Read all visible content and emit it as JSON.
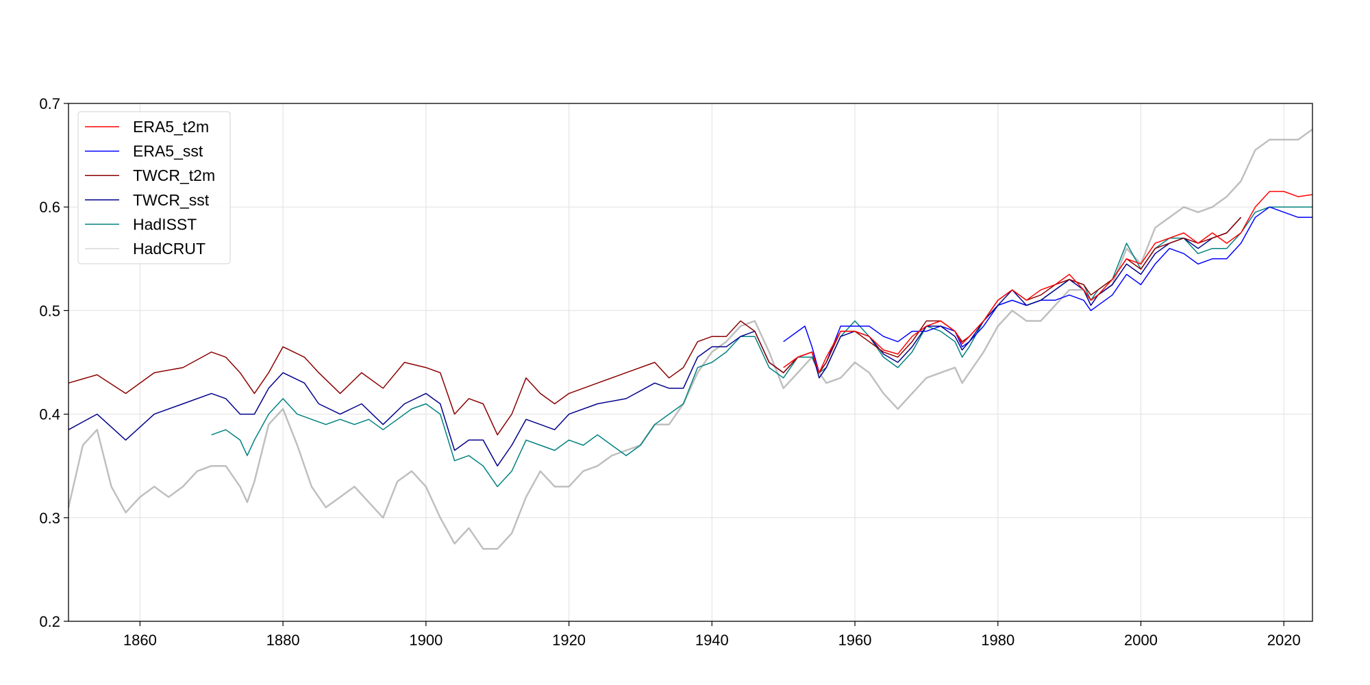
{
  "chart_data": {
    "type": "line",
    "title": "",
    "xlabel": "",
    "ylabel": "",
    "xlim": [
      1850,
      2024
    ],
    "ylim": [
      0.2,
      0.7
    ],
    "xticks": [
      1860,
      1880,
      1900,
      1920,
      1940,
      1960,
      1980,
      2000,
      2020
    ],
    "yticks": [
      0.2,
      0.3,
      0.4,
      0.5,
      0.6,
      0.7
    ],
    "grid": true,
    "legend_position": "top-left",
    "series": [
      {
        "name": "ERA5_t2m",
        "color": "#ff0000",
        "x": [
          1950,
          1952,
          1954,
          1955,
          1956,
          1958,
          1960,
          1962,
          1964,
          1966,
          1968,
          1970,
          1972,
          1974,
          1975,
          1976,
          1978,
          1980,
          1982,
          1984,
          1986,
          1988,
          1990,
          1992,
          1993,
          1994,
          1996,
          1998,
          2000,
          2002,
          2004,
          2006,
          2008,
          2010,
          2012,
          2014,
          2016,
          2018,
          2020,
          2022,
          2024
        ],
        "y": [
          0.445,
          0.455,
          0.46,
          0.44,
          0.455,
          0.48,
          0.48,
          0.475,
          0.462,
          0.458,
          0.475,
          0.485,
          0.49,
          0.48,
          0.468,
          0.475,
          0.49,
          0.51,
          0.52,
          0.51,
          0.52,
          0.525,
          0.535,
          0.52,
          0.51,
          0.515,
          0.53,
          0.55,
          0.545,
          0.565,
          0.57,
          0.575,
          0.565,
          0.575,
          0.565,
          0.575,
          0.6,
          0.615,
          0.615,
          0.61,
          0.612
        ]
      },
      {
        "name": "ERA5_sst",
        "color": "#0000ff",
        "x": [
          1950,
          1952,
          1953,
          1954,
          1955,
          1956,
          1958,
          1960,
          1962,
          1964,
          1966,
          1968,
          1970,
          1972,
          1974,
          1975,
          1976,
          1978,
          1980,
          1982,
          1984,
          1986,
          1988,
          1990,
          1992,
          1993,
          1994,
          1996,
          1998,
          2000,
          2002,
          2004,
          2006,
          2008,
          2010,
          2012,
          2014,
          2016,
          2018,
          2020,
          2022,
          2024
        ],
        "y": [
          0.47,
          0.48,
          0.485,
          0.465,
          0.44,
          0.45,
          0.485,
          0.485,
          0.485,
          0.475,
          0.47,
          0.48,
          0.48,
          0.485,
          0.48,
          0.465,
          0.47,
          0.485,
          0.505,
          0.51,
          0.505,
          0.51,
          0.51,
          0.515,
          0.51,
          0.5,
          0.505,
          0.515,
          0.535,
          0.525,
          0.545,
          0.56,
          0.555,
          0.545,
          0.55,
          0.55,
          0.565,
          0.59,
          0.6,
          0.595,
          0.59,
          0.59
        ]
      },
      {
        "name": "TWCR_t2m",
        "color": "#8b0000",
        "x": [
          1850,
          1854,
          1858,
          1862,
          1866,
          1870,
          1872,
          1874,
          1876,
          1878,
          1880,
          1883,
          1885,
          1888,
          1891,
          1894,
          1897,
          1900,
          1902,
          1904,
          1906,
          1908,
          1910,
          1912,
          1914,
          1916,
          1918,
          1920,
          1924,
          1928,
          1932,
          1934,
          1936,
          1938,
          1940,
          1942,
          1944,
          1946,
          1948,
          1950,
          1952,
          1954,
          1955,
          1956,
          1958,
          1960,
          1962,
          1964,
          1966,
          1968,
          1970,
          1972,
          1974,
          1975,
          1976,
          1978,
          1980,
          1982,
          1984,
          1986,
          1988,
          1990,
          1992,
          1993,
          1994,
          1996,
          1998,
          2000,
          2002,
          2004,
          2006,
          2008,
          2010,
          2012,
          2014
        ],
        "y": [
          0.43,
          0.438,
          0.42,
          0.44,
          0.445,
          0.46,
          0.455,
          0.44,
          0.42,
          0.44,
          0.465,
          0.455,
          0.44,
          0.42,
          0.44,
          0.425,
          0.45,
          0.445,
          0.44,
          0.4,
          0.415,
          0.41,
          0.38,
          0.4,
          0.435,
          0.42,
          0.41,
          0.42,
          0.43,
          0.44,
          0.45,
          0.435,
          0.445,
          0.47,
          0.475,
          0.475,
          0.49,
          0.48,
          0.45,
          0.44,
          0.455,
          0.46,
          0.44,
          0.45,
          0.48,
          0.48,
          0.47,
          0.46,
          0.455,
          0.47,
          0.49,
          0.49,
          0.48,
          0.47,
          0.475,
          0.49,
          0.51,
          0.52,
          0.51,
          0.515,
          0.525,
          0.53,
          0.525,
          0.515,
          0.52,
          0.53,
          0.55,
          0.54,
          0.56,
          0.565,
          0.57,
          0.565,
          0.57,
          0.575,
          0.59
        ]
      },
      {
        "name": "TWCR_sst",
        "color": "#00008b",
        "x": [
          1850,
          1854,
          1858,
          1862,
          1866,
          1870,
          1872,
          1874,
          1876,
          1878,
          1880,
          1883,
          1885,
          1888,
          1891,
          1894,
          1897,
          1900,
          1902,
          1904,
          1906,
          1908,
          1910,
          1912,
          1914,
          1916,
          1918,
          1920,
          1924,
          1928,
          1932,
          1934,
          1936,
          1938,
          1940,
          1942,
          1944,
          1946,
          1948,
          1950,
          1952,
          1954,
          1955,
          1956,
          1958,
          1960,
          1962,
          1964,
          1966,
          1968,
          1970,
          1972,
          1974,
          1975,
          1976,
          1978,
          1980,
          1982,
          1984,
          1986,
          1988,
          1990,
          1992,
          1993,
          1994,
          1996,
          1998,
          2000,
          2002,
          2004,
          2006,
          2008,
          2010,
          2012,
          2014
        ],
        "y": [
          0.385,
          0.4,
          0.375,
          0.4,
          0.41,
          0.42,
          0.415,
          0.4,
          0.4,
          0.425,
          0.44,
          0.43,
          0.41,
          0.4,
          0.41,
          0.39,
          0.41,
          0.42,
          0.41,
          0.365,
          0.375,
          0.375,
          0.35,
          0.37,
          0.395,
          0.39,
          0.385,
          0.4,
          0.41,
          0.415,
          0.43,
          0.425,
          0.425,
          0.455,
          0.465,
          0.465,
          0.475,
          0.48,
          0.45,
          0.44,
          0.455,
          0.46,
          0.435,
          0.445,
          0.475,
          0.48,
          0.475,
          0.458,
          0.45,
          0.465,
          0.485,
          0.485,
          0.475,
          0.462,
          0.47,
          0.49,
          0.505,
          0.52,
          0.505,
          0.51,
          0.52,
          0.53,
          0.52,
          0.505,
          0.515,
          0.525,
          0.545,
          0.535,
          0.555,
          0.565,
          0.57,
          0.56,
          0.57,
          0.575,
          0.59
        ]
      },
      {
        "name": "HadISST",
        "color": "#008080",
        "x": [
          1870,
          1872,
          1874,
          1875,
          1876,
          1878,
          1880,
          1882,
          1884,
          1886,
          1888,
          1890,
          1892,
          1894,
          1896,
          1898,
          1900,
          1902,
          1904,
          1906,
          1908,
          1910,
          1912,
          1914,
          1916,
          1918,
          1920,
          1922,
          1924,
          1926,
          1928,
          1930,
          1932,
          1934,
          1936,
          1938,
          1940,
          1942,
          1944,
          1946,
          1948,
          1950,
          1952,
          1954,
          1955,
          1956,
          1958,
          1960,
          1962,
          1964,
          1966,
          1968,
          1970,
          1972,
          1974,
          1975,
          1976,
          1978,
          1980,
          1982,
          1984,
          1986,
          1988,
          1990,
          1992,
          1993,
          1994,
          1996,
          1998,
          2000,
          2002,
          2004,
          2006,
          2008,
          2010,
          2012,
          2014,
          2016,
          2018,
          2020,
          2022,
          2024
        ],
        "y": [
          0.38,
          0.385,
          0.375,
          0.36,
          0.375,
          0.4,
          0.415,
          0.4,
          0.395,
          0.39,
          0.395,
          0.39,
          0.395,
          0.385,
          0.395,
          0.405,
          0.41,
          0.4,
          0.355,
          0.36,
          0.35,
          0.33,
          0.345,
          0.375,
          0.37,
          0.365,
          0.375,
          0.37,
          0.38,
          0.37,
          0.36,
          0.37,
          0.39,
          0.4,
          0.41,
          0.445,
          0.45,
          0.46,
          0.475,
          0.475,
          0.445,
          0.435,
          0.455,
          0.455,
          0.44,
          0.445,
          0.475,
          0.49,
          0.475,
          0.455,
          0.445,
          0.46,
          0.485,
          0.48,
          0.47,
          0.455,
          0.465,
          0.49,
          0.505,
          0.51,
          0.505,
          0.51,
          0.52,
          0.53,
          0.525,
          0.51,
          0.52,
          0.53,
          0.565,
          0.54,
          0.56,
          0.57,
          0.57,
          0.555,
          0.56,
          0.56,
          0.575,
          0.595,
          0.6,
          0.6,
          0.6,
          0.6
        ]
      },
      {
        "name": "HadCRUT",
        "color": "#aaaaaa",
        "x": [
          1850,
          1852,
          1854,
          1856,
          1858,
          1860,
          1862,
          1864,
          1866,
          1868,
          1870,
          1872,
          1874,
          1875,
          1876,
          1878,
          1880,
          1882,
          1884,
          1886,
          1888,
          1890,
          1892,
          1894,
          1896,
          1898,
          1900,
          1902,
          1904,
          1906,
          1908,
          1910,
          1912,
          1914,
          1916,
          1918,
          1920,
          1922,
          1924,
          1926,
          1928,
          1930,
          1932,
          1934,
          1936,
          1938,
          1940,
          1942,
          1944,
          1946,
          1948,
          1950,
          1952,
          1954,
          1955,
          1956,
          1958,
          1960,
          1962,
          1964,
          1966,
          1968,
          1970,
          1972,
          1974,
          1975,
          1976,
          1978,
          1980,
          1982,
          1984,
          1986,
          1988,
          1990,
          1992,
          1993,
          1994,
          1996,
          1998,
          2000,
          2002,
          2004,
          2006,
          2008,
          2010,
          2012,
          2014,
          2016,
          2018,
          2020,
          2022,
          2024
        ],
        "y": [
          0.31,
          0.37,
          0.385,
          0.33,
          0.305,
          0.32,
          0.33,
          0.32,
          0.33,
          0.345,
          0.35,
          0.35,
          0.33,
          0.315,
          0.335,
          0.39,
          0.405,
          0.37,
          0.33,
          0.31,
          0.32,
          0.33,
          0.315,
          0.3,
          0.335,
          0.345,
          0.33,
          0.3,
          0.275,
          0.29,
          0.27,
          0.27,
          0.285,
          0.32,
          0.345,
          0.33,
          0.33,
          0.345,
          0.35,
          0.36,
          0.365,
          0.37,
          0.39,
          0.39,
          0.41,
          0.44,
          0.46,
          0.47,
          0.485,
          0.49,
          0.46,
          0.425,
          0.44,
          0.455,
          0.44,
          0.43,
          0.435,
          0.45,
          0.44,
          0.42,
          0.405,
          0.42,
          0.435,
          0.44,
          0.445,
          0.43,
          0.44,
          0.46,
          0.485,
          0.5,
          0.49,
          0.49,
          0.505,
          0.52,
          0.52,
          0.51,
          0.515,
          0.525,
          0.56,
          0.545,
          0.58,
          0.59,
          0.6,
          0.595,
          0.6,
          0.61,
          0.625,
          0.655,
          0.665,
          0.665,
          0.665,
          0.675
        ]
      }
    ]
  }
}
